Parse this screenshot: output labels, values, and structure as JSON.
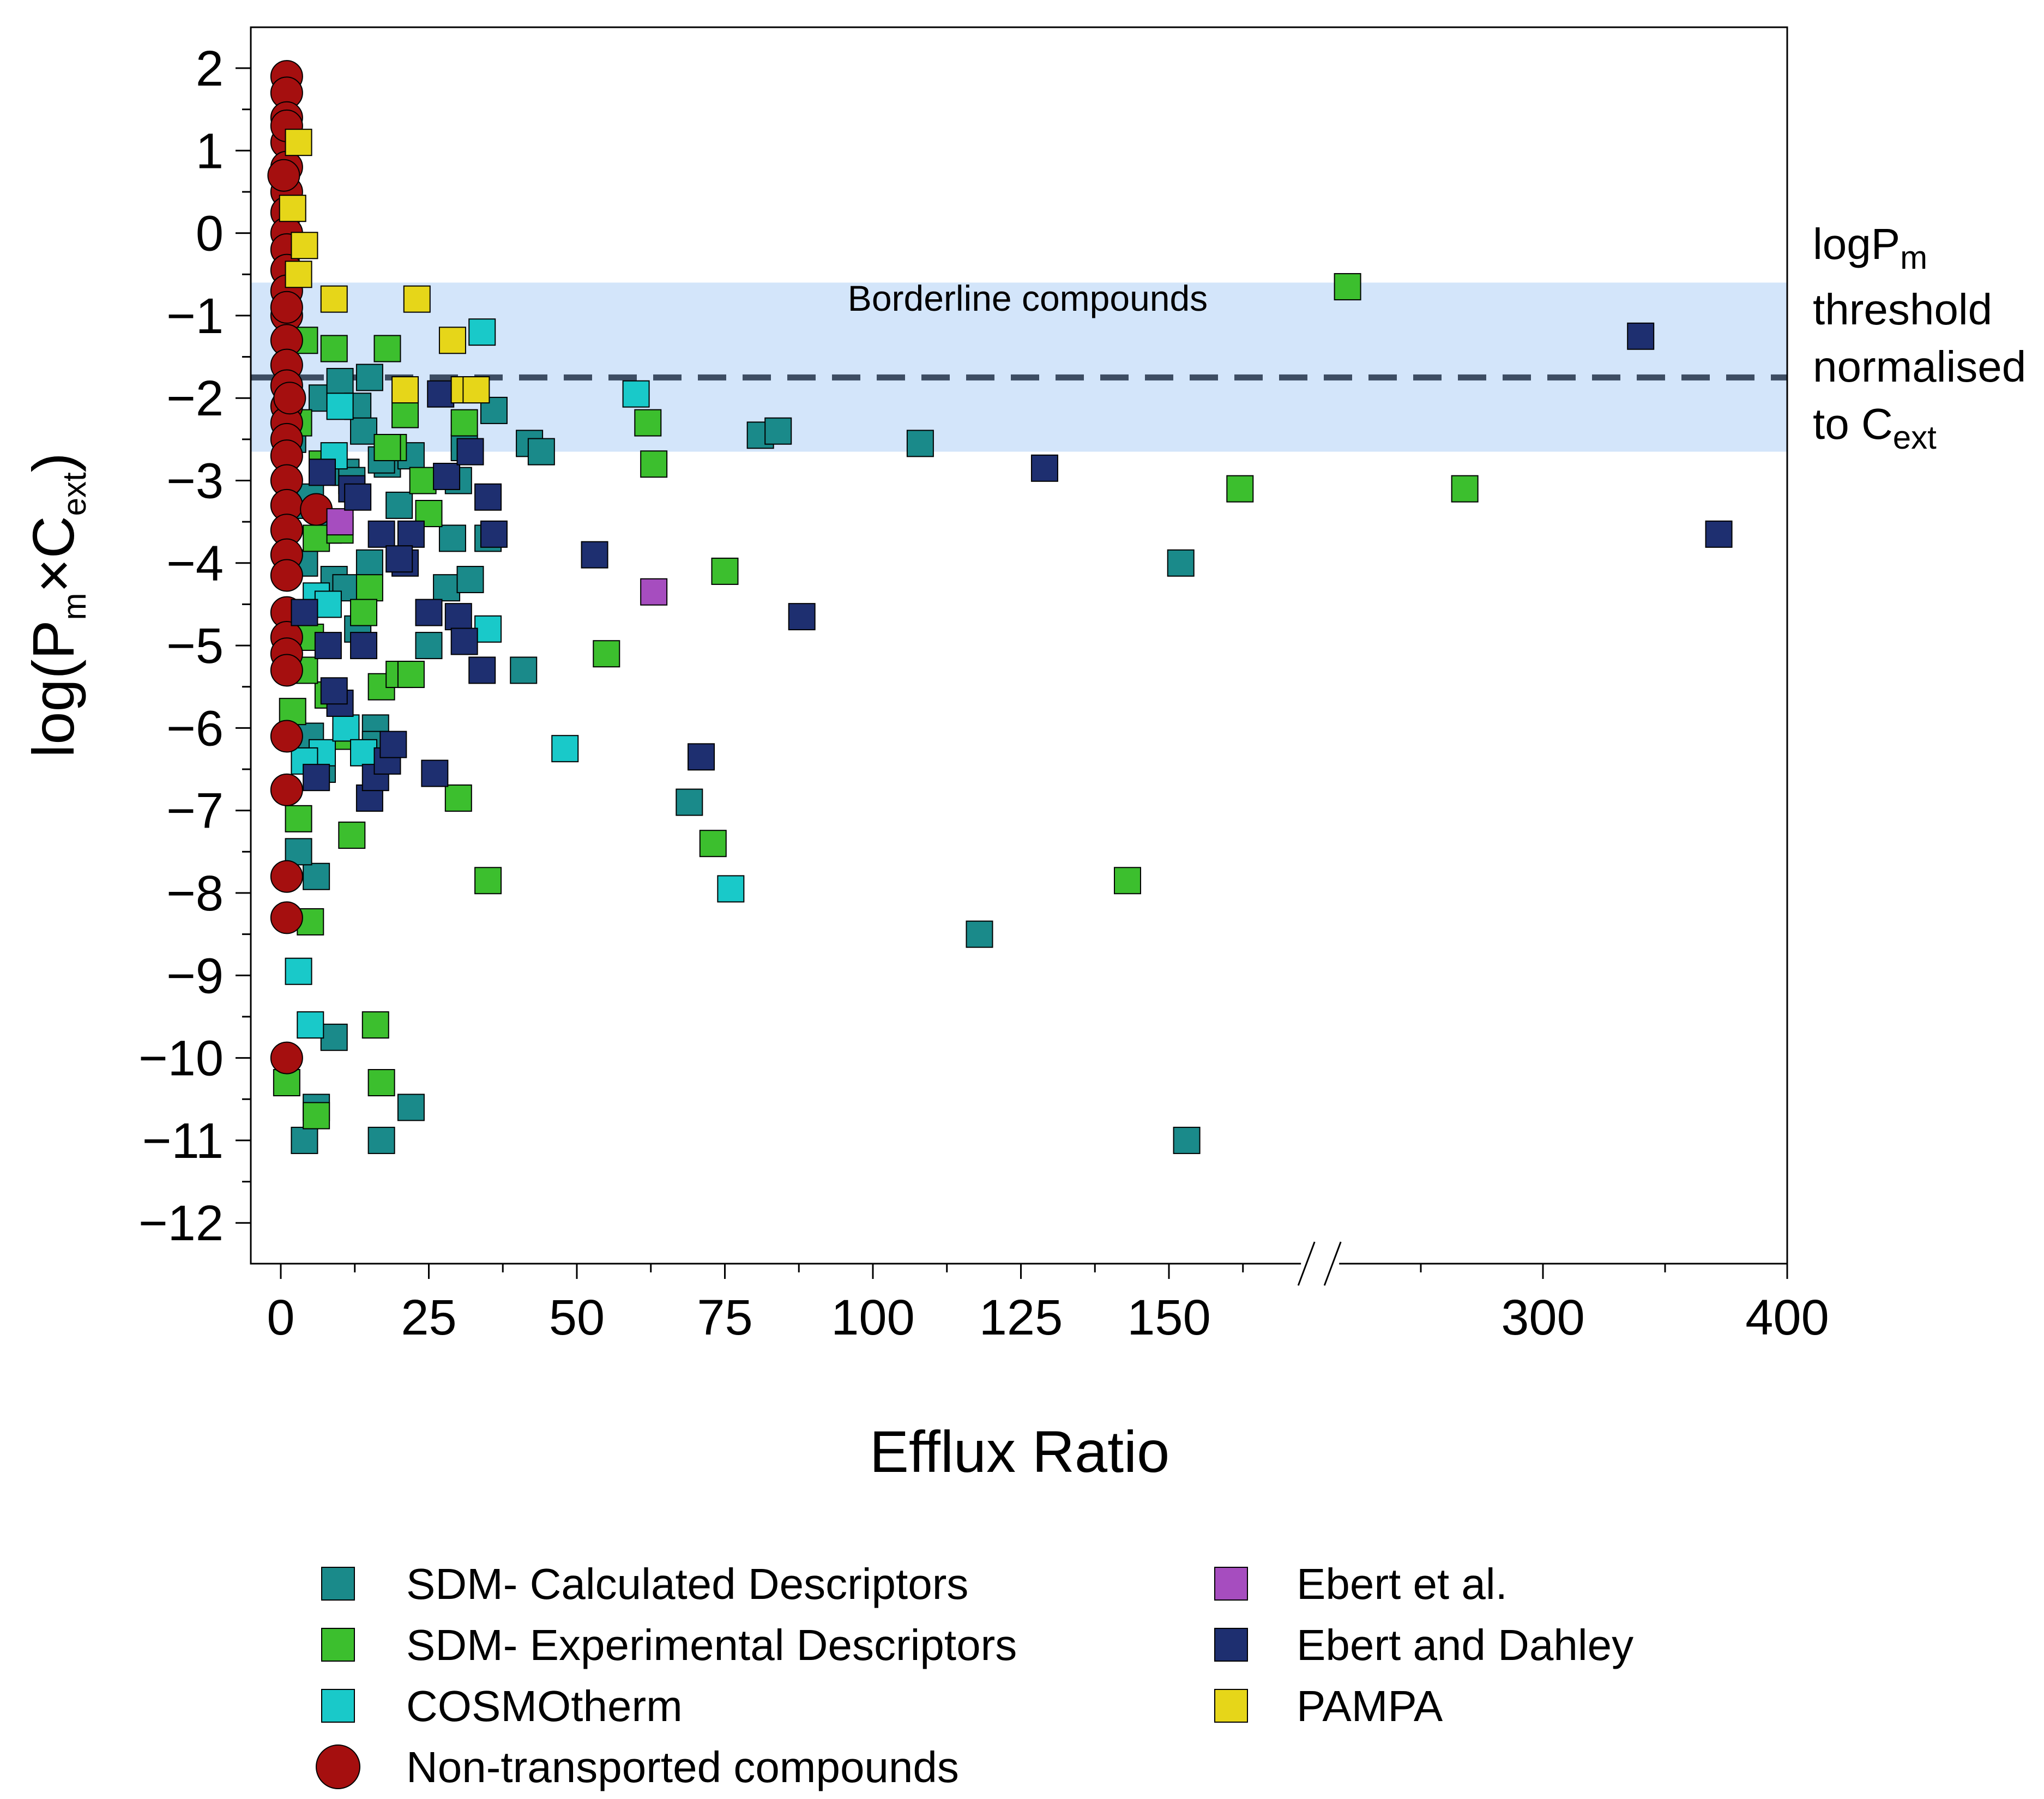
{
  "chart_data": {
    "type": "scatter",
    "xlabel": "Efflux Ratio",
    "ylabel_parts": {
      "base1": "log(P",
      "sub1": "m",
      "mid": "×C",
      "sub2": "ext",
      "end": ")"
    },
    "x_ticks": [
      "0",
      "25",
      "50",
      "75",
      "100",
      "125",
      "150",
      "300",
      "400"
    ],
    "x_tick_values": [
      0,
      25,
      50,
      75,
      100,
      125,
      150,
      300,
      400
    ],
    "x_axis_break": {
      "after": 160,
      "before": 240
    },
    "xlim": [
      -5,
      400
    ],
    "ylim": [
      -12.5,
      2.5
    ],
    "y_ticks": [
      "2",
      "1",
      "0",
      "−1",
      "−2",
      "−3",
      "−4",
      "−5",
      "−6",
      "−7",
      "−8",
      "−9",
      "−10",
      "−11",
      "−12"
    ],
    "y_tick_values": [
      2,
      1,
      0,
      -1,
      -2,
      -3,
      -4,
      -5,
      -6,
      -7,
      -8,
      -9,
      -10,
      -11,
      -12
    ],
    "band": {
      "label": "Borderline compounds",
      "y_min": -2.65,
      "y_max": -0.6,
      "color": "#d3e5fa"
    },
    "threshold": {
      "y": -1.75,
      "color": "#3d4d63",
      "label_lines": [
        {
          "base": "logP",
          "sub": "m"
        },
        {
          "base": "threshold",
          "sub": ""
        },
        {
          "base": "normalised",
          "sub": ""
        },
        {
          "base": "to C",
          "sub": "ext"
        }
      ]
    },
    "grid": false,
    "legend_position": "bottom",
    "series": [
      {
        "name": "SDM- Calculated Descriptors",
        "marker": "square",
        "color": "#1a8a8a",
        "x": [
          2,
          3,
          4,
          5,
          6,
          7,
          8,
          9,
          10,
          11,
          12,
          13,
          14,
          15,
          16,
          17,
          18,
          20,
          22,
          25,
          28,
          29,
          31,
          32,
          35,
          36,
          41,
          42,
          44,
          69,
          81,
          84,
          108,
          118,
          152,
          153,
          22,
          16,
          4,
          6,
          9,
          3,
          7,
          13,
          15,
          17,
          11,
          5,
          30
        ],
        "y": [
          -2.5,
          -3.3,
          -4.0,
          -6.1,
          -7.8,
          -2.0,
          -3.6,
          -4.2,
          -1.8,
          -2.9,
          -3.0,
          -2.1,
          -2.4,
          -4.0,
          -6.0,
          -11.0,
          -2.8,
          -3.3,
          -2.7,
          -5.0,
          -4.3,
          -3.7,
          -2.6,
          -4.2,
          -3.7,
          -2.15,
          -5.3,
          -2.55,
          -2.65,
          -6.9,
          -2.45,
          -2.4,
          -2.55,
          -8.5,
          -4.0,
          -11.0,
          -10.6,
          -6.2,
          -11.0,
          -10.6,
          -9.75,
          -7.5,
          -6.5,
          -4.8,
          -1.75,
          -2.75,
          -4.3,
          -3.2,
          -3.0
        ]
      },
      {
        "name": "SDM- Experimental Descriptors",
        "marker": "square",
        "color": "#3cbf2e",
        "x": [
          1,
          3,
          4,
          5,
          6,
          7,
          9,
          10,
          12,
          15,
          17,
          18,
          19,
          20,
          22,
          24,
          25,
          30,
          31,
          35,
          55,
          62,
          63,
          73,
          75,
          143,
          162,
          220,
          268,
          5,
          6,
          8,
          16,
          17,
          18,
          21,
          2,
          4,
          11,
          14,
          3
        ],
        "y": [
          -10.3,
          -7.1,
          -1.3,
          -8.35,
          -3.7,
          -2.8,
          -1.4,
          -3.6,
          -7.3,
          -4.3,
          -5.5,
          -1.4,
          -2.6,
          -5.35,
          -5.35,
          -3.0,
          -3.4,
          -6.85,
          -2.3,
          -7.85,
          -5.1,
          -2.3,
          -2.8,
          -7.4,
          -4.1,
          -7.85,
          -3.1,
          -0.65,
          -3.1,
          -4.9,
          -10.7,
          -5.6,
          -9.6,
          -10.3,
          -2.6,
          -2.2,
          -5.8,
          -5.3,
          -6.1,
          -4.6,
          -2.3
        ]
      },
      {
        "name": "COSMOtherm",
        "marker": "square",
        "color": "#19c9c9",
        "x": [
          3,
          5,
          6,
          7,
          8,
          9,
          11,
          14,
          34,
          35,
          48,
          60,
          76,
          4,
          10
        ],
        "y": [
          -8.95,
          -9.6,
          -4.4,
          -6.3,
          -4.5,
          -2.7,
          -6.0,
          -6.3,
          -1.2,
          -4.8,
          -6.25,
          -1.95,
          -7.95,
          -6.4,
          -2.1
        ]
      },
      {
        "name": "Non-transported compounds",
        "marker": "circle",
        "color": "#a50f0f",
        "x": [
          1,
          1,
          1,
          1,
          1,
          1,
          1,
          1,
          1,
          1,
          1,
          1,
          1,
          1,
          1,
          1,
          1,
          1,
          1,
          1,
          1,
          1,
          1,
          1,
          1,
          1,
          1,
          1,
          1,
          1,
          1,
          1,
          1,
          1,
          6,
          0.5,
          1.5,
          1
        ],
        "y": [
          1.9,
          1.7,
          1.4,
          1.1,
          0.8,
          0.5,
          0.25,
          0.0,
          -0.2,
          -0.45,
          -0.7,
          -1.0,
          -1.3,
          -1.6,
          -1.85,
          -2.1,
          -2.3,
          -2.5,
          -2.7,
          -3.0,
          -3.3,
          -3.6,
          -3.9,
          -4.15,
          -4.6,
          -4.9,
          -5.1,
          -5.3,
          -6.1,
          -6.75,
          -7.8,
          -8.3,
          -10.0,
          -0.9,
          -3.35,
          0.7,
          -2.0,
          1.3
        ]
      },
      {
        "name": "Ebert et al.",
        "marker": "square",
        "color": "#a64dbf",
        "x": [
          63,
          10
        ],
        "y": [
          -4.35,
          -3.5
        ]
      },
      {
        "name": "Ebert and Dahley",
        "marker": "square",
        "color": "#1e2f70",
        "x": [
          4,
          6,
          8,
          10,
          12,
          14,
          15,
          16,
          17,
          18,
          19,
          21,
          22,
          25,
          26,
          28,
          30,
          31,
          32,
          34,
          35,
          36,
          53,
          71,
          88,
          129,
          340,
          372,
          27,
          13,
          7,
          9,
          20
        ],
        "y": [
          -4.6,
          -6.6,
          -5.0,
          -5.7,
          -3.1,
          -5.0,
          -6.85,
          -6.6,
          -3.65,
          -6.4,
          -6.2,
          -4.0,
          -3.65,
          -4.6,
          -6.55,
          -2.95,
          -4.65,
          -4.95,
          -2.65,
          -5.3,
          -3.2,
          -3.65,
          -3.9,
          -6.35,
          -4.65,
          -2.85,
          -1.25,
          -3.65,
          -1.95,
          -3.2,
          -2.9,
          -5.55,
          -3.95
        ]
      },
      {
        "name": "PAMPA",
        "marker": "square",
        "color": "#e6d619",
        "x": [
          3,
          4,
          9,
          21,
          23,
          29,
          31,
          33,
          2,
          3
        ],
        "y": [
          1.1,
          -0.15,
          -0.8,
          -1.9,
          -0.8,
          -1.3,
          -1.9,
          -1.9,
          0.3,
          -0.5
        ]
      }
    ]
  }
}
